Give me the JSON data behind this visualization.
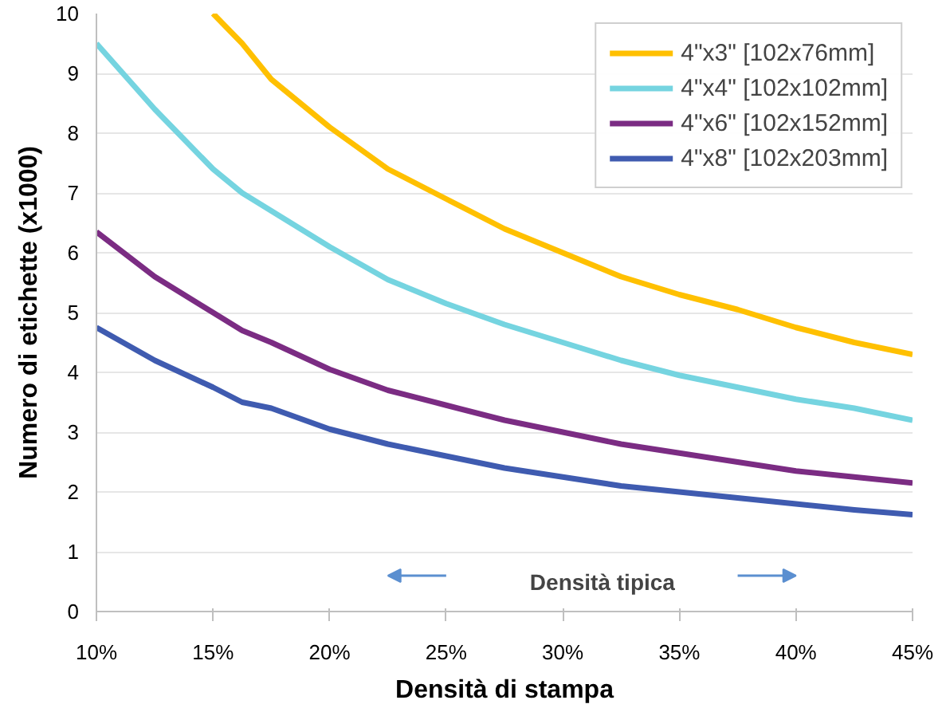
{
  "chart_data": {
    "type": "line",
    "xlabel": "Densità di stampa",
    "ylabel": "Numero di etichette (x1000)",
    "x": [
      10,
      12.5,
      15,
      16.25,
      17.5,
      20,
      22.5,
      25,
      27.5,
      30,
      32.5,
      35,
      37.5,
      40,
      42.5,
      45
    ],
    "series": [
      {
        "name": "4\"x3\" [102x76mm]",
        "color": "#ffc000",
        "values": [
          null,
          null,
          10,
          9.5,
          8.9,
          8.1,
          7.4,
          6.9,
          6.4,
          6.0,
          5.6,
          5.3,
          5.05,
          4.75,
          4.5,
          4.3
        ]
      },
      {
        "name": "4\"x4\" [102x102mm]",
        "color": "#75d4e0",
        "values": [
          9.5,
          8.4,
          7.4,
          7.0,
          6.7,
          6.1,
          5.55,
          5.15,
          4.8,
          4.5,
          4.2,
          3.95,
          3.75,
          3.55,
          3.4,
          3.2
        ]
      },
      {
        "name": "4\"x6\" [102x152mm]",
        "color": "#7b2c83",
        "values": [
          6.35,
          5.6,
          5.0,
          4.7,
          4.5,
          4.05,
          3.7,
          3.45,
          3.2,
          3.0,
          2.8,
          2.65,
          2.5,
          2.35,
          2.25,
          2.15
        ]
      },
      {
        "name": "4\"x8\" [102x203mm]",
        "color": "#3f5bb0",
        "values": [
          4.75,
          4.2,
          3.75,
          3.5,
          3.4,
          3.05,
          2.8,
          2.6,
          2.4,
          2.25,
          2.1,
          2.0,
          1.9,
          1.8,
          1.7,
          1.62
        ]
      }
    ],
    "annotations": [
      "Densità tipica"
    ],
    "xlim": [
      10,
      45
    ],
    "ylim": [
      0,
      10
    ],
    "xticks": [
      {
        "value": 10,
        "label": "10%"
      },
      {
        "value": 15,
        "label": "15%"
      },
      {
        "value": 20,
        "label": "20%"
      },
      {
        "value": 25,
        "label": "25%"
      },
      {
        "value": 30,
        "label": "30%"
      },
      {
        "value": 35,
        "label": "35%"
      },
      {
        "value": 40,
        "label": "40%"
      },
      {
        "value": 45,
        "label": "45%"
      }
    ],
    "yticks": [
      0,
      1,
      2,
      3,
      4,
      5,
      6,
      7,
      8,
      9,
      10
    ],
    "grid": "y",
    "legend": "top right",
    "marker": "none",
    "line_style": "solid"
  }
}
